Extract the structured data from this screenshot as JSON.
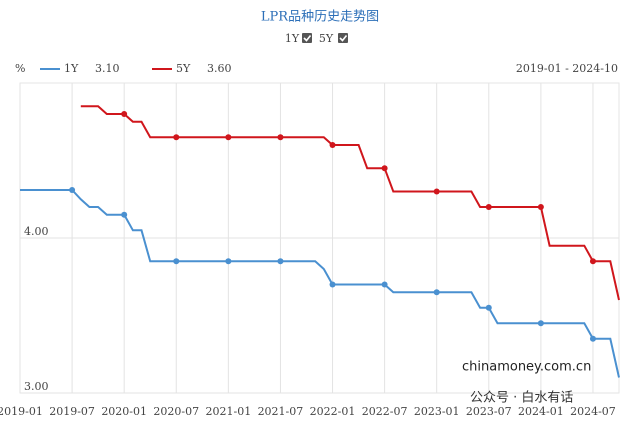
{
  "chart_data": {
    "type": "line",
    "title": "LPR品种历史走势图",
    "y_unit": "%",
    "range_label": "2019-01 - 2024-10",
    "watermarks": [
      "chinamoney.com.cn",
      "公众号 · 白水有话"
    ],
    "x": [
      "2019-01",
      "2019-02",
      "2019-03",
      "2019-04",
      "2019-05",
      "2019-06",
      "2019-07",
      "2019-08",
      "2019-09",
      "2019-10",
      "2019-11",
      "2019-12",
      "2020-01",
      "2020-02",
      "2020-03",
      "2020-04",
      "2020-05",
      "2020-06",
      "2020-07",
      "2020-08",
      "2020-09",
      "2020-10",
      "2020-11",
      "2020-12",
      "2021-01",
      "2021-02",
      "2021-03",
      "2021-04",
      "2021-05",
      "2021-06",
      "2021-07",
      "2021-08",
      "2021-09",
      "2021-10",
      "2021-11",
      "2021-12",
      "2022-01",
      "2022-02",
      "2022-03",
      "2022-04",
      "2022-05",
      "2022-06",
      "2022-07",
      "2022-08",
      "2022-09",
      "2022-10",
      "2022-11",
      "2022-12",
      "2023-01",
      "2023-02",
      "2023-03",
      "2023-04",
      "2023-05",
      "2023-06",
      "2023-07",
      "2023-08",
      "2023-09",
      "2023-10",
      "2023-11",
      "2023-12",
      "2024-01",
      "2024-02",
      "2024-03",
      "2024-04",
      "2024-05",
      "2024-06",
      "2024-07",
      "2024-08",
      "2024-09",
      "2024-10"
    ],
    "xticks": [
      "2019-01",
      "2019-07",
      "2020-01",
      "2020-07",
      "2021-01",
      "2021-07",
      "2022-01",
      "2022-07",
      "2023-01",
      "2023-07",
      "2024-01",
      "2024-07"
    ],
    "ylim": [
      3,
      5
    ],
    "yticks": [
      {
        "value": 3,
        "label": "3.00"
      },
      {
        "value": 4,
        "label": "4.00"
      }
    ],
    "grid": true,
    "series": [
      {
        "name": "1Y",
        "color": "#4a90d0",
        "current_label": "3.10",
        "values": [
          4.31,
          4.31,
          4.31,
          4.31,
          4.31,
          4.31,
          4.31,
          4.25,
          4.2,
          4.2,
          4.15,
          4.15,
          4.15,
          4.05,
          4.05,
          3.85,
          3.85,
          3.85,
          3.85,
          3.85,
          3.85,
          3.85,
          3.85,
          3.85,
          3.85,
          3.85,
          3.85,
          3.85,
          3.85,
          3.85,
          3.85,
          3.85,
          3.85,
          3.85,
          3.85,
          3.8,
          3.7,
          3.7,
          3.7,
          3.7,
          3.7,
          3.7,
          3.7,
          3.65,
          3.65,
          3.65,
          3.65,
          3.65,
          3.65,
          3.65,
          3.65,
          3.65,
          3.65,
          3.55,
          3.55,
          3.45,
          3.45,
          3.45,
          3.45,
          3.45,
          3.45,
          3.45,
          3.45,
          3.45,
          3.45,
          3.45,
          3.35,
          3.35,
          3.35,
          3.1
        ]
      },
      {
        "name": "5Y",
        "color": "#d0161c",
        "current_label": "3.60",
        "values": [
          null,
          null,
          null,
          null,
          null,
          null,
          null,
          4.85,
          4.85,
          4.85,
          4.8,
          4.8,
          4.8,
          4.75,
          4.75,
          4.65,
          4.65,
          4.65,
          4.65,
          4.65,
          4.65,
          4.65,
          4.65,
          4.65,
          4.65,
          4.65,
          4.65,
          4.65,
          4.65,
          4.65,
          4.65,
          4.65,
          4.65,
          4.65,
          4.65,
          4.65,
          4.6,
          4.6,
          4.6,
          4.6,
          4.45,
          4.45,
          4.45,
          4.3,
          4.3,
          4.3,
          4.3,
          4.3,
          4.3,
          4.3,
          4.3,
          4.3,
          4.3,
          4.2,
          4.2,
          4.2,
          4.2,
          4.2,
          4.2,
          4.2,
          4.2,
          3.95,
          3.95,
          3.95,
          3.95,
          3.95,
          3.85,
          3.85,
          3.85,
          3.6
        ]
      }
    ]
  }
}
